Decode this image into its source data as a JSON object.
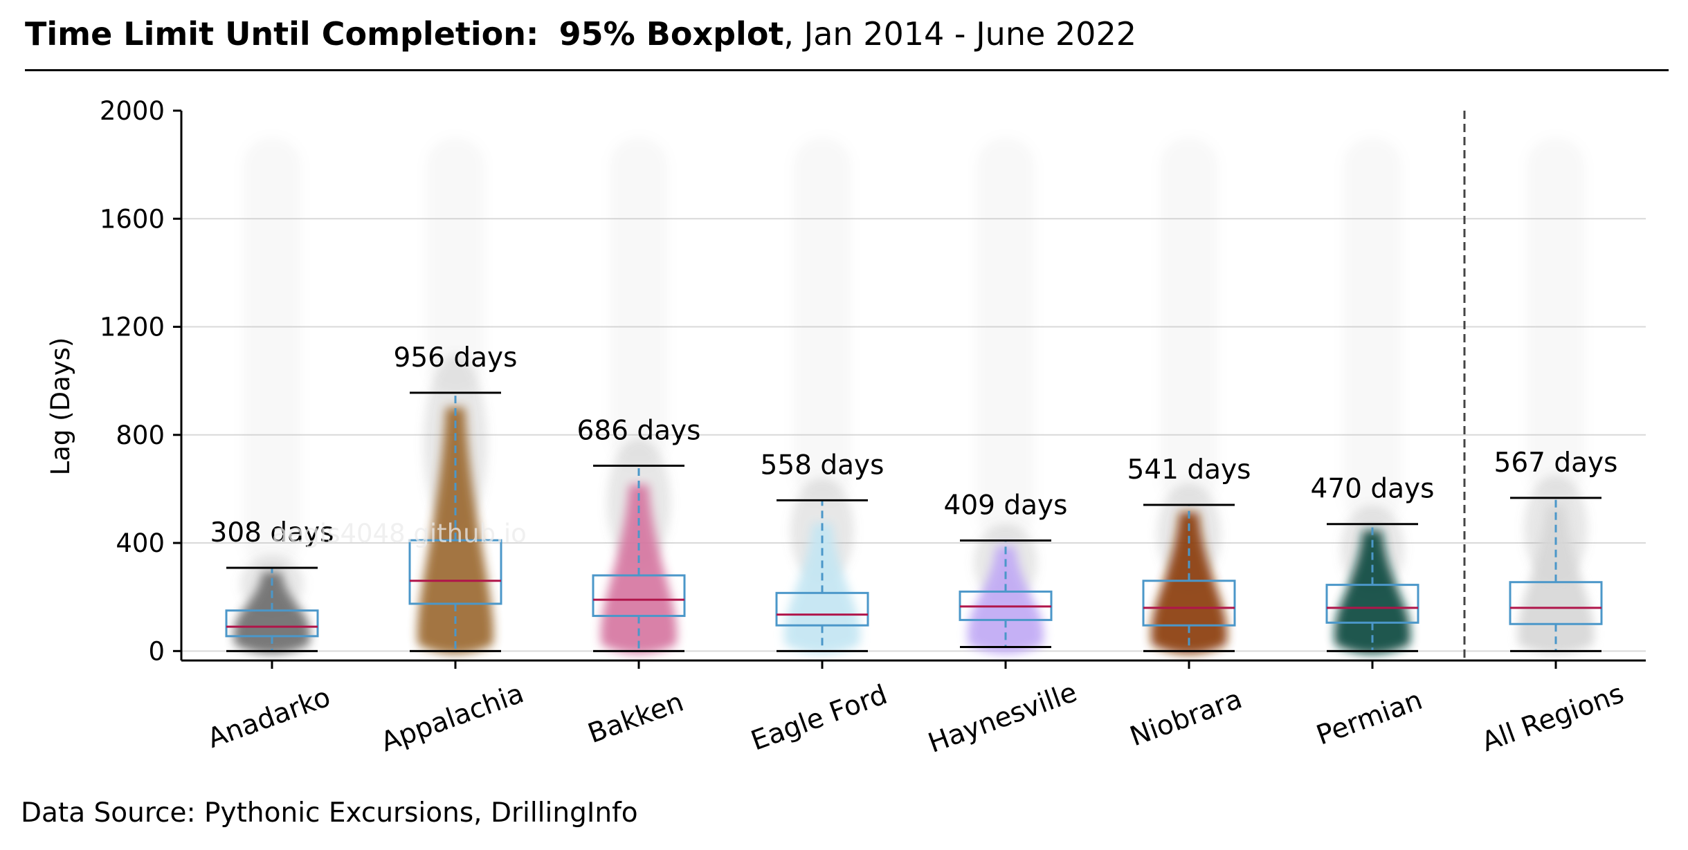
{
  "title": {
    "bold_text": "Time Limit Until Completion",
    "colon": ":",
    "bold_text2": "95% Boxplot",
    "suffix": ",  Jan 2014 - June 2022"
  },
  "source": "Data Source: Pythonic Excursions, DrillingInfo",
  "watermark": "aegis4048.github.io",
  "chart_data": {
    "type": "box",
    "title": "Time Limit Until Completion: 95% Boxplot, Jan 2014 - June 2022",
    "xlabel": "",
    "ylabel": "Lag (Days)",
    "ylim": [
      -35,
      2000
    ],
    "yticks": [
      0,
      400,
      800,
      1200,
      1600,
      2000
    ],
    "grid": "horizontal",
    "categories": [
      "Anadarko",
      "Appalachia",
      "Bakken",
      "Eagle Ford",
      "Haynesville",
      "Niobrara",
      "Permian",
      "All Regions"
    ],
    "series": [
      {
        "whisker_low": 0,
        "q1": 55,
        "median": 90,
        "q3": 150,
        "whisker_high": 308,
        "label": "308 days",
        "color": "#6e6e6e"
      },
      {
        "whisker_low": 0,
        "q1": 175,
        "median": 260,
        "q3": 410,
        "whisker_high": 956,
        "label": "956 days",
        "color": "#9c6b30"
      },
      {
        "whisker_low": 0,
        "q1": 130,
        "median": 190,
        "q3": 280,
        "whisker_high": 686,
        "label": "686 days",
        "color": "#d677a1"
      },
      {
        "whisker_low": 0,
        "q1": 95,
        "median": 135,
        "q3": 215,
        "whisker_high": 558,
        "label": "558 days",
        "color": "#c4e6f3"
      },
      {
        "whisker_low": 15,
        "q1": 115,
        "median": 165,
        "q3": 220,
        "whisker_high": 409,
        "label": "409 days",
        "color": "#c1aaf5"
      },
      {
        "whisker_low": 0,
        "q1": 95,
        "median": 160,
        "q3": 260,
        "whisker_high": 541,
        "label": "541 days",
        "color": "#8b3e0c"
      },
      {
        "whisker_low": 0,
        "q1": 105,
        "median": 160,
        "q3": 245,
        "whisker_high": 470,
        "label": "470 days",
        "color": "#0d4a40"
      },
      {
        "whisker_low": 0,
        "q1": 100,
        "median": 160,
        "q3": 255,
        "whisker_high": 567,
        "label": "567 days",
        "color": "#d7d7d7"
      }
    ],
    "style": {
      "box_color": "#4b97c9",
      "median_color": "#b0154a",
      "grid_color": "#d9d9d9",
      "separator_color": "#444444"
    }
  }
}
